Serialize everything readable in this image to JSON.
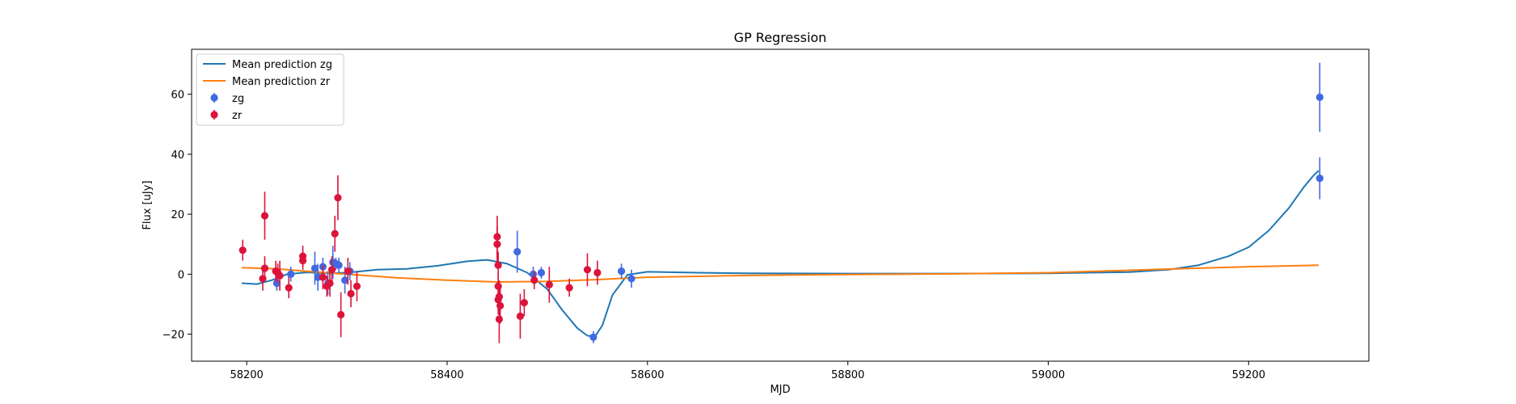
{
  "chart_data": {
    "type": "scatter",
    "title": "GP Regression",
    "xlabel": "MJD",
    "ylabel": "Flux [uJy]",
    "xlim": [
      58145,
      59320
    ],
    "ylim": [
      -29,
      75
    ],
    "xticks": [
      58200,
      58400,
      58600,
      58800,
      59000,
      59200
    ],
    "yticks": [
      -20,
      0,
      20,
      40,
      60
    ],
    "legend_position": "upper-left",
    "grid": false,
    "series": [
      {
        "name": "Mean prediction zg",
        "kind": "line",
        "color": "#1f77b4",
        "x": [
          58195,
          58210,
          58225,
          58240,
          58260,
          58280,
          58300,
          58330,
          58360,
          58390,
          58420,
          58440,
          58460,
          58480,
          58500,
          58515,
          58530,
          58540,
          58548,
          58555,
          58565,
          58580,
          58600,
          58650,
          58700,
          58800,
          58900,
          59000,
          59080,
          59120,
          59150,
          59180,
          59200,
          59220,
          59240,
          59255,
          59265,
          59270
        ],
        "values": [
          -3.0,
          -3.3,
          -2.0,
          0.0,
          0.6,
          0.3,
          0.5,
          1.5,
          1.8,
          2.8,
          4.3,
          4.8,
          3.5,
          0.5,
          -5.0,
          -12.0,
          -18.0,
          -20.5,
          -20.6,
          -17.0,
          -7.0,
          -0.2,
          0.8,
          0.5,
          0.3,
          0.2,
          0.2,
          0.3,
          0.7,
          1.5,
          3.0,
          6.0,
          9.0,
          14.5,
          22.0,
          29.0,
          33.0,
          34.5
        ]
      },
      {
        "name": "Mean prediction zr",
        "kind": "line",
        "color": "#ff7f0e",
        "x": [
          58195,
          58230,
          58260,
          58300,
          58350,
          58400,
          58450,
          58500,
          58550,
          58600,
          58700,
          58800,
          58900,
          59000,
          59100,
          59200,
          59270
        ],
        "values": [
          2.2,
          1.8,
          1.0,
          0.0,
          -1.2,
          -2.0,
          -2.6,
          -2.4,
          -1.8,
          -1.0,
          -0.4,
          -0.1,
          0.1,
          0.5,
          1.5,
          2.5,
          3.0
        ]
      },
      {
        "name": "zg",
        "kind": "errorbar",
        "color": "#4169e1",
        "x": [
          58230,
          58244,
          58268,
          58271,
          58276,
          58281,
          58286,
          58289,
          58292,
          58298,
          58303,
          58470,
          58486,
          58494,
          58546,
          58574,
          58584,
          59271,
          59271
        ],
        "values": [
          -3.0,
          0.0,
          2.0,
          -1.0,
          2.5,
          -3.0,
          4.0,
          3.5,
          3.0,
          -2.0,
          1.0,
          7.5,
          0.0,
          0.5,
          -21.0,
          1.0,
          -1.5,
          59.0,
          32.0
        ],
        "errors": [
          2.5,
          2.5,
          5.5,
          4.5,
          3.0,
          4.0,
          5.5,
          2.0,
          2.5,
          4.5,
          3.0,
          7.0,
          2.5,
          2.0,
          2.0,
          2.5,
          3.0,
          11.5,
          7.0
        ]
      },
      {
        "name": "zr",
        "kind": "errorbar",
        "color": "#dc143c",
        "x": [
          58196,
          58216,
          58218,
          58218,
          58229,
          58231,
          58233,
          58242,
          58256,
          58256,
          58276,
          58280,
          58283,
          58285,
          58288,
          58291,
          58294,
          58301,
          58304,
          58310,
          58450,
          58450,
          58451,
          58451,
          58451,
          58452,
          58452,
          58453,
          58473,
          58477,
          58487,
          58502,
          58522,
          58540,
          58550
        ],
        "values": [
          8.0,
          -1.5,
          19.5,
          2.0,
          1.0,
          0.5,
          -0.5,
          -4.5,
          6.0,
          4.5,
          -1.0,
          -4.0,
          -3.0,
          1.5,
          13.5,
          25.5,
          -13.5,
          1.0,
          -6.5,
          -4.0,
          12.5,
          10.0,
          3.0,
          -4.0,
          -8.5,
          -15.0,
          -7.5,
          -10.5,
          -14.0,
          -9.5,
          -2.0,
          -3.5,
          -4.5,
          1.5,
          0.5
        ],
        "errors": [
          3.5,
          4.0,
          8.0,
          4.0,
          3.5,
          3.0,
          5.0,
          3.5,
          3.5,
          3.0,
          4.0,
          3.5,
          4.5,
          4.5,
          6.0,
          7.5,
          7.5,
          4.5,
          4.5,
          5.0,
          7.0,
          6.0,
          4.5,
          4.5,
          5.0,
          8.0,
          5.5,
          6.0,
          7.5,
          4.5,
          3.0,
          6.0,
          3.0,
          5.5,
          4.0
        ]
      }
    ]
  }
}
